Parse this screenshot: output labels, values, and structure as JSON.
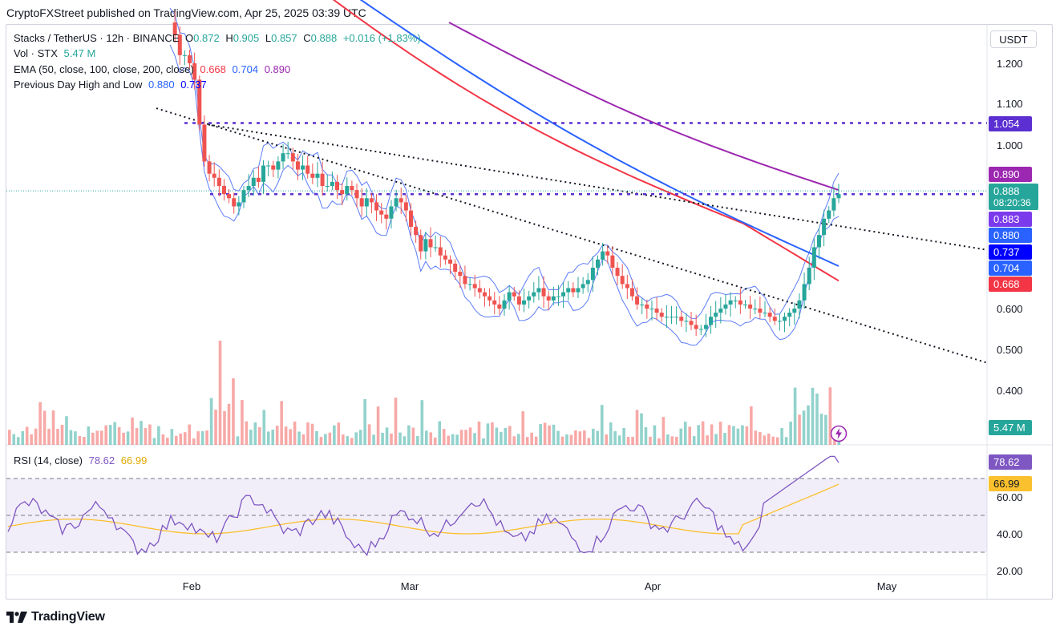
{
  "header": {
    "published": "CryptoFXStreet published on TradingView.com, Apr 25, 2025 03:39 UTC"
  },
  "footer": {
    "brand": "TradingView"
  },
  "legend": {
    "symbol": "Stacks / TetherUS · 12h · BINANCE",
    "o_label": "O",
    "o": "0.872",
    "h_label": "H",
    "h": "0.905",
    "l_label": "L",
    "l": "0.857",
    "c_label": "C",
    "c": "0.888",
    "change": "+0.016 (+1.83%)",
    "vol_label": "Vol · STX",
    "vol": "5.47 M",
    "ema_label": "EMA (50, close, 100, close, 200, close)",
    "ema50": "0.668",
    "ema100": "0.704",
    "ema200": "0.890",
    "pdhl_label": "Previous Day High and Low",
    "pdh": "0.880",
    "pdl": "0.737",
    "rsi_label": "RSI (14, close)",
    "rsi": "78.62",
    "rsi_ma": "66.99"
  },
  "axis": {
    "currency": "USDT",
    "price_ticks": [
      "1.200",
      "1.100",
      "1.000",
      "0.600",
      "0.500",
      "0.400"
    ],
    "rsi_ticks": [
      "60.00",
      "40.00",
      "20.00"
    ],
    "time_ticks": [
      "Feb",
      "Mar",
      "Apr",
      "May"
    ]
  },
  "price_tags": {
    "resistance": "1.054",
    "ema200": "0.890",
    "last": "0.888",
    "countdown": "08:20:36",
    "bb_upper": "0.883",
    "pdh": "0.880",
    "pdl": "0.737",
    "ema100": "0.704",
    "ema50": "0.668",
    "volume": "5.47 M",
    "rsi": "78.62",
    "rsi_ma": "66.99"
  },
  "colors": {
    "up": "#26a69a",
    "down": "#ef5350",
    "ema50": "#f23645",
    "ema100": "#2962ff",
    "ema200": "#9c27b0",
    "pdh": "#2962ff",
    "pdl": "#0000ff",
    "resistance": "#5b2fd1",
    "rsi": "#7e57c2",
    "rsi_ma": "#fbc02d",
    "bb": "#5c7cfa"
  },
  "chart_data": {
    "type": "candlestick",
    "title": "Stacks / TetherUS · 12h · BINANCE",
    "interval": "12h",
    "price_axis": {
      "min": 0.35,
      "max": 1.25,
      "ticks": [
        0.4,
        0.5,
        0.6,
        1.0,
        1.1,
        1.2
      ],
      "unit": "USDT"
    },
    "time_axis": {
      "ticks": [
        "Feb",
        "Mar",
        "Apr",
        "May"
      ]
    },
    "series": [
      {
        "name": "Close",
        "approx_close": [
          1.3,
          1.27,
          1.22,
          1.22,
          1.2,
          1.16,
          1.05,
          0.96,
          0.93,
          0.92,
          0.9,
          0.88,
          0.87,
          0.85,
          0.86,
          0.89,
          0.9,
          0.92,
          0.91,
          0.95,
          0.95,
          0.94,
          0.96,
          0.98,
          0.98,
          0.96,
          0.94,
          0.95,
          0.93,
          0.92,
          0.93,
          0.9,
          0.9,
          0.91,
          0.89,
          0.88,
          0.9,
          0.89,
          0.87,
          0.85,
          0.87,
          0.86,
          0.84,
          0.83,
          0.82,
          0.85,
          0.87,
          0.86,
          0.84,
          0.8,
          0.78,
          0.74,
          0.77,
          0.75,
          0.75,
          0.73,
          0.72,
          0.71,
          0.69,
          0.68,
          0.66,
          0.66,
          0.65,
          0.64,
          0.63,
          0.62,
          0.61,
          0.6,
          0.62,
          0.64,
          0.63,
          0.61,
          0.62,
          0.63,
          0.64,
          0.65,
          0.63,
          0.62,
          0.63,
          0.63,
          0.64,
          0.65,
          0.64,
          0.65,
          0.66,
          0.67,
          0.7,
          0.72,
          0.74,
          0.73,
          0.7,
          0.68,
          0.66,
          0.65,
          0.63,
          0.61,
          0.61,
          0.6,
          0.6,
          0.59,
          0.58,
          0.58,
          0.58,
          0.58,
          0.57,
          0.57,
          0.56,
          0.55,
          0.55,
          0.56,
          0.58,
          0.59,
          0.6,
          0.61,
          0.62,
          0.62,
          0.61,
          0.61,
          0.6,
          0.6,
          0.59,
          0.59,
          0.58,
          0.57,
          0.57,
          0.58,
          0.59,
          0.6,
          0.62,
          0.66,
          0.7,
          0.75,
          0.78,
          0.82,
          0.84,
          0.87,
          0.88
        ]
      },
      {
        "name": "EMA 50",
        "value_last": 0.668
      },
      {
        "name": "EMA 100",
        "value_last": 0.704
      },
      {
        "name": "EMA 200",
        "value_last": 0.89
      }
    ],
    "levels": {
      "resistance": 1.054,
      "previous_day_high": 0.88,
      "previous_day_low": 0.737
    },
    "volume": {
      "last": "5.47 M"
    },
    "rsi": {
      "period": 14,
      "value": 78.62,
      "ma": 66.99,
      "ticks": [
        20,
        40,
        60
      ],
      "bands": [
        30,
        50,
        70
      ]
    }
  }
}
